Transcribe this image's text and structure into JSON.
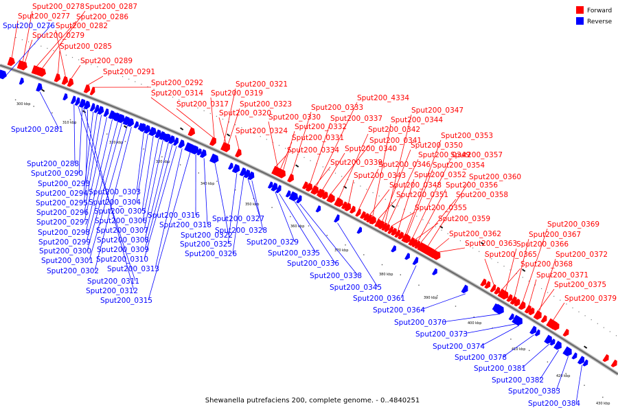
{
  "legend": {
    "forward_label": "Forward",
    "reverse_label": "Reverse",
    "forward_color": "#ff0000",
    "reverse_color": "#0000ff"
  },
  "caption": "Shewanella putrefaciens 200, complete genome. - 0..4840251",
  "ticks": [
    "300 kbp",
    "310 kbp",
    "320 kbp",
    "330 kbp",
    "340 kbp",
    "350 kbp",
    "360 kbp",
    "370 kbp",
    "380 kbp",
    "390 kbp",
    "400 kbp",
    "410 kbp",
    "420 kbp",
    "430 kbp"
  ],
  "forward_genes": [
    "Sput200_0278",
    "Sput200_0287",
    "Sput200_0277",
    "Sput200_0286",
    "Sput200_0282",
    "Sput200_0279",
    "Sput200_0285",
    "Sput200_0289",
    "Sput200_0291",
    "Sput200_0292",
    "Sput200_0314",
    "Sput200_0317",
    "Sput200_0321",
    "Sput200_0319",
    "Sput200_0323",
    "Sput200_0320",
    "Sput200_0324",
    "Sput200_0330",
    "Sput200_0333",
    "Sput200_4334",
    "Sput200_0332",
    "Sput200_0337",
    "Sput200_0331",
    "Sput200_0342",
    "Sput200_0334",
    "Sput200_0341",
    "Sput200_0340",
    "Sput200_0339",
    "Sput200_0347",
    "Sput200_0344",
    "Sput200_0353",
    "Sput200_0350",
    "Sput200_0349",
    "Sput200_0357",
    "Sput200_0346",
    "Sput200_0354",
    "Sput200_0343",
    "Sput200_0352",
    "Sput200_0360",
    "Sput200_0348",
    "Sput200_0356",
    "Sput200_0351",
    "Sput200_0358",
    "Sput200_0355",
    "Sput200_0359",
    "Sput200_0362",
    "Sput200_0363",
    "Sput200_0369",
    "Sput200_0367",
    "Sput200_0366",
    "Sput200_0365",
    "Sput200_0372",
    "Sput200_0368",
    "Sput200_0371",
    "Sput200_0375",
    "Sput200_0379"
  ],
  "reverse_genes": [
    "Sput200_0276",
    "Sput200_0281",
    "Sput200_0288",
    "Sput200_0290",
    "Sput200_0293",
    "Sput200_0294",
    "Sput200_0295",
    "Sput200_0296",
    "Sput200_0297",
    "Sput200_0298",
    "Sput200_0299",
    "Sput200_0300",
    "Sput200_0301",
    "Sput200_0302",
    "Sput200_0303",
    "Sput200_0304",
    "Sput200_0305",
    "Sput200_0306",
    "Sput200_0307",
    "Sput200_0308",
    "Sput200_0309",
    "Sput200_0310",
    "Sput200_0313",
    "Sput200_0311",
    "Sput200_0312",
    "Sput200_0315",
    "Sput200_0316",
    "Sput200_0318",
    "Sput200_0322",
    "Sput200_0325",
    "Sput200_0326",
    "Sput200_0327",
    "Sput200_0328",
    "Sput200_0329",
    "Sput200_0335",
    "Sput200_0336",
    "Sput200_0338",
    "Sput200_0345",
    "Sput200_0361",
    "Sput200_0364",
    "Sput200_0370",
    "Sput200_0373",
    "Sput200_0374",
    "Sput200_0378",
    "Sput200_0381",
    "Sput200_0382",
    "Sput200_0383",
    "Sput200_0384"
  ]
}
